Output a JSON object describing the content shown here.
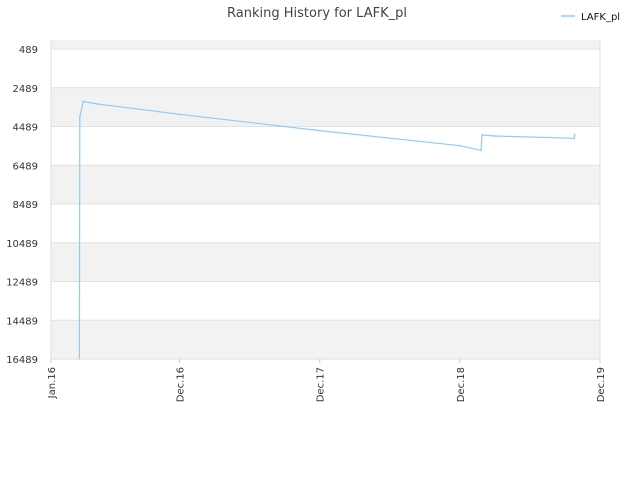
{
  "chart_data": {
    "type": "line",
    "title": "Ranking History for LAFK_pl",
    "xlabel": "",
    "ylabel": "",
    "y_inverted": true,
    "ylim": [
      489,
      16489
    ],
    "yticks": [
      489,
      2489,
      4489,
      6489,
      8489,
      10489,
      12489,
      14489,
      16489
    ],
    "xlim": [
      "2016-01-01",
      "2019-12-01"
    ],
    "xticks": [
      {
        "date": "2016-01-01",
        "label": "Jan.16"
      },
      {
        "date": "2016-12-01",
        "label": "Dec.16"
      },
      {
        "date": "2017-12-01",
        "label": "Dec.17"
      },
      {
        "date": "2018-12-01",
        "label": "Dec.18"
      },
      {
        "date": "2019-12-01",
        "label": "Dec.19"
      }
    ],
    "grid": true,
    "legend_position": "top-right",
    "series": [
      {
        "name": "LAFK_pl",
        "color": "#90caf9",
        "points": [
          {
            "date": "2016-03-15",
            "rank": 16489
          },
          {
            "date": "2016-03-16",
            "rank": 4000
          },
          {
            "date": "2016-03-25",
            "rank": 3200
          },
          {
            "date": "2016-05-01",
            "rank": 3330
          },
          {
            "date": "2016-12-01",
            "rank": 3860
          },
          {
            "date": "2017-12-01",
            "rank": 4700
          },
          {
            "date": "2018-12-01",
            "rank": 5480
          },
          {
            "date": "2019-01-25",
            "rank": 5720
          },
          {
            "date": "2019-01-28",
            "rank": 4930
          },
          {
            "date": "2019-03-01",
            "rank": 4980
          },
          {
            "date": "2019-09-25",
            "rank": 5100
          },
          {
            "date": "2019-09-26",
            "rank": 4910
          }
        ]
      }
    ]
  }
}
